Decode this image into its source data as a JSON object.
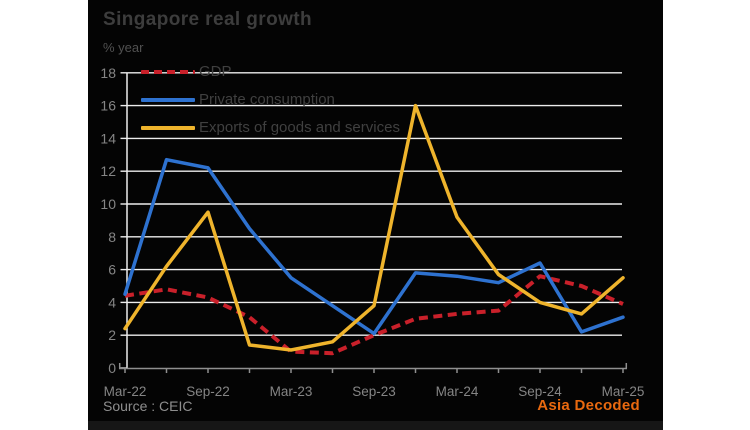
{
  "header": {
    "title": "Singapore real growth",
    "unit": "% year"
  },
  "footer": {
    "source": "Source : CEIC",
    "brand": "Asia Decoded"
  },
  "colors": {
    "panel_background": "#040404",
    "page_background": "#ffffff",
    "gridline": "#ededed",
    "x_axis": "#8f8f8f",
    "axis_tick_label": "#858585",
    "title_text": "#3d3d3d",
    "legend_text": "#404040",
    "source_text": "#8e8e8e",
    "brand_orange": "#e9690f",
    "gdp_red": "#c9202a",
    "private_consumption_blue": "#2e72d0",
    "exports_yellow": "#efb42c"
  },
  "chart_data": {
    "type": "line",
    "title": "Singapore real growth",
    "xlabel": "",
    "ylabel": "% year",
    "ylim": [
      0,
      18
    ],
    "ytick_step": 2,
    "y_ticks": [
      0,
      2,
      4,
      6,
      8,
      10,
      12,
      14,
      16,
      18
    ],
    "grid": "horizontal gridlines on, white on black",
    "legend_position": "top-left inside plot area",
    "x": [
      "Mar-22",
      "Jun-22",
      "Sep-22",
      "Dec-22",
      "Mar-23",
      "Jun-23",
      "Sep-23",
      "Dec-23",
      "Mar-24",
      "Jun-24",
      "Sep-24",
      "Dec-24",
      "Mar-25"
    ],
    "x_axis_tick_labels": [
      "Mar-22",
      "Sep-22",
      "Mar-23",
      "Sep-23",
      "Mar-24",
      "Sep-24",
      "Mar-25"
    ],
    "x_label_every_n_points": 2,
    "series": [
      {
        "name": "GDP",
        "color": "#c9202a",
        "line_style": "dashed",
        "values": [
          4.4,
          4.8,
          4.3,
          3.1,
          1.0,
          0.9,
          2.0,
          3.0,
          3.3,
          3.5,
          5.6,
          5.0,
          3.9
        ]
      },
      {
        "name": "Private consumption",
        "color": "#2e72d0",
        "line_style": "solid",
        "values": [
          4.5,
          12.7,
          12.2,
          8.5,
          5.5,
          3.8,
          2.1,
          5.8,
          5.6,
          5.2,
          6.4,
          2.2,
          3.1
        ]
      },
      {
        "name": "Exports of goods and services",
        "color": "#efb42c",
        "line_style": "solid",
        "values": [
          2.4,
          6.2,
          9.5,
          1.4,
          1.1,
          1.6,
          3.8,
          16.0,
          9.2,
          5.7,
          4.0,
          3.3,
          5.5
        ]
      }
    ]
  }
}
